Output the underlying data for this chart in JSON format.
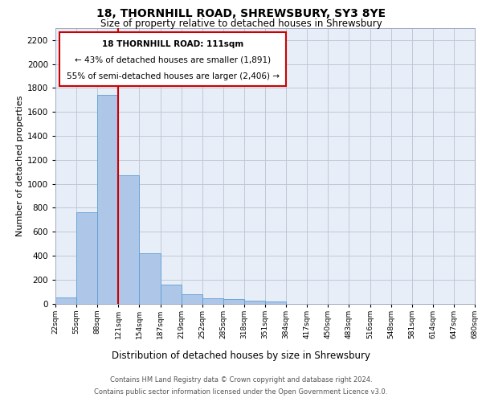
{
  "title": "18, THORNHILL ROAD, SHREWSBURY, SY3 8YE",
  "subtitle": "Size of property relative to detached houses in Shrewsbury",
  "xlabel": "Distribution of detached houses by size in Shrewsbury",
  "ylabel": "Number of detached properties",
  "footer1": "Contains HM Land Registry data © Crown copyright and database right 2024.",
  "footer2": "Contains public sector information licensed under the Open Government Licence v3.0.",
  "annotation_title": "18 THORNHILL ROAD: 111sqm",
  "annotation_line2": "← 43% of detached houses are smaller (1,891)",
  "annotation_line3": "55% of semi-detached houses are larger (2,406) →",
  "bar_values": [
    50,
    760,
    1740,
    1070,
    420,
    155,
    80,
    45,
    35,
    25,
    15,
    0,
    0,
    0,
    0,
    0,
    0,
    0,
    0,
    0
  ],
  "bin_labels": [
    "22sqm",
    "55sqm",
    "88sqm",
    "121sqm",
    "154sqm",
    "187sqm",
    "219sqm",
    "252sqm",
    "285sqm",
    "318sqm",
    "351sqm",
    "384sqm",
    "417sqm",
    "450sqm",
    "483sqm",
    "516sqm",
    "548sqm",
    "581sqm",
    "614sqm",
    "647sqm",
    "680sqm"
  ],
  "bar_color": "#aec6e8",
  "bar_edge_color": "#5a9fd4",
  "grid_color": "#c0c8d8",
  "background_color": "#e8eef8",
  "vline_color": "#cc0000",
  "annotation_box_color": "#cc0000",
  "ylim": [
    0,
    2300
  ],
  "yticks": [
    0,
    200,
    400,
    600,
    800,
    1000,
    1200,
    1400,
    1600,
    1800,
    2000,
    2200
  ]
}
